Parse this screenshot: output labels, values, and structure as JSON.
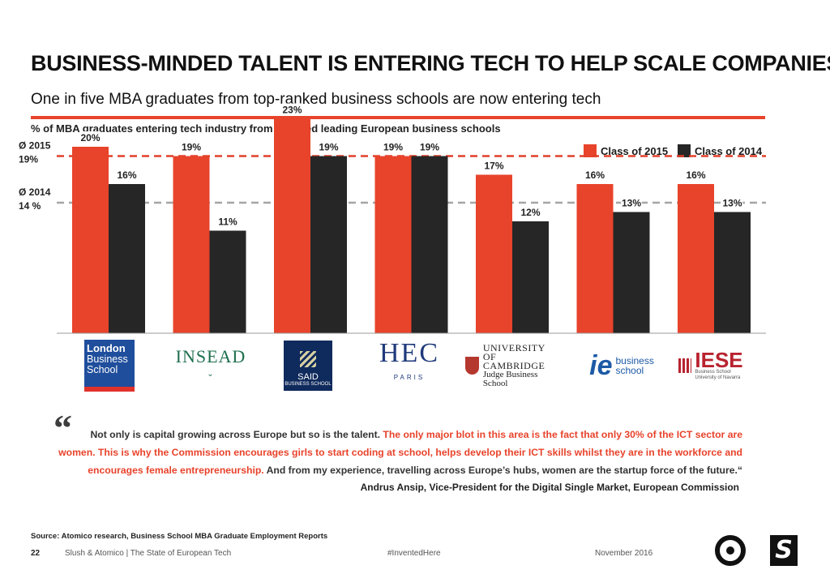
{
  "header": {
    "title": "BUSINESS-MINDED TALENT IS ENTERING TECH TO HELP SCALE COMPANIES",
    "subtitle": "One in five MBA graduates from top-ranked business schools are now entering tech"
  },
  "colors": {
    "accent": "#e8432b",
    "class2014": "#262626",
    "avg_line_2015": "#e0412b",
    "avg_line_2014": "#a5a5a5"
  },
  "chart_data": {
    "type": "bar",
    "title": "% of MBA graduates entering tech industry from selected leading European business schools",
    "categories": [
      "London Business School",
      "INSEAD",
      "SAID Business School",
      "HEC Paris",
      "University of Cambridge Judge Business School",
      "IE Business School",
      "IESE Business School"
    ],
    "series": [
      {
        "name": "Class of 2015",
        "color": "#e8432b",
        "values": [
          20,
          19,
          23,
          19,
          17,
          16,
          16
        ],
        "labels": [
          "20%",
          "19%",
          "23%",
          "19%",
          "17%",
          "16%",
          "16%"
        ]
      },
      {
        "name": "Class of 2014",
        "color": "#262626",
        "values": [
          16,
          11,
          19,
          19,
          12,
          13,
          13
        ],
        "labels": [
          "16%",
          "11%",
          "19%",
          "19%",
          "12%",
          "13%",
          "13%"
        ]
      }
    ],
    "reference_lines": [
      {
        "value": 19,
        "label_top": "Ø 2015",
        "label_bottom": "19%",
        "color": "#e0412b"
      },
      {
        "value": 14,
        "label_top": "Ø 2014",
        "label_bottom": "14 %",
        "color": "#a5a5a5"
      }
    ],
    "ylim": [
      0,
      24
    ],
    "legend_position": "top-right",
    "grid": false
  },
  "logos": {
    "lbs": {
      "line1": "London",
      "line2": "Business",
      "line3": "School"
    },
    "insead": {
      "name": "INSEAD"
    },
    "said": {
      "name": "SAID",
      "sub": "BUSINESS SCHOOL"
    },
    "hec": {
      "name": "HEC",
      "sub": "PARIS"
    },
    "cambridge": {
      "line1": "UNIVERSITY OF",
      "line2": "CAMBRIDGE",
      "line3": "Judge Business School"
    },
    "ie": {
      "mark": "ie",
      "line1": "business",
      "line2": "school"
    },
    "iese": {
      "name": "IESE",
      "sub1": "Business School",
      "sub2": "University of Navarra"
    }
  },
  "quote": {
    "mark": "“",
    "part1": "Not only is capital growing across Europe but so is the talent. ",
    "part2": "The only major blot in this area is the fact that only 30% of the ICT sector are women. This is why the Commission encourages girls to start coding at school, helps develop their ICT skills whilst they are in the workforce and encourages female entrepreneurship.",
    "part3": " And from my experience, travelling across Europe’s hubs, women are the startup force of the future.“",
    "attribution": "Andrus Ansip, Vice-President for the Digital Single Market, European Commission"
  },
  "footer": {
    "source": "Source: Atomico research, Business School MBA Graduate Employment Reports",
    "page": "22",
    "publication": "Slush & Atomico  |  The State of European Tech",
    "hashtag": "#InventedHere",
    "date": "November 2016"
  }
}
